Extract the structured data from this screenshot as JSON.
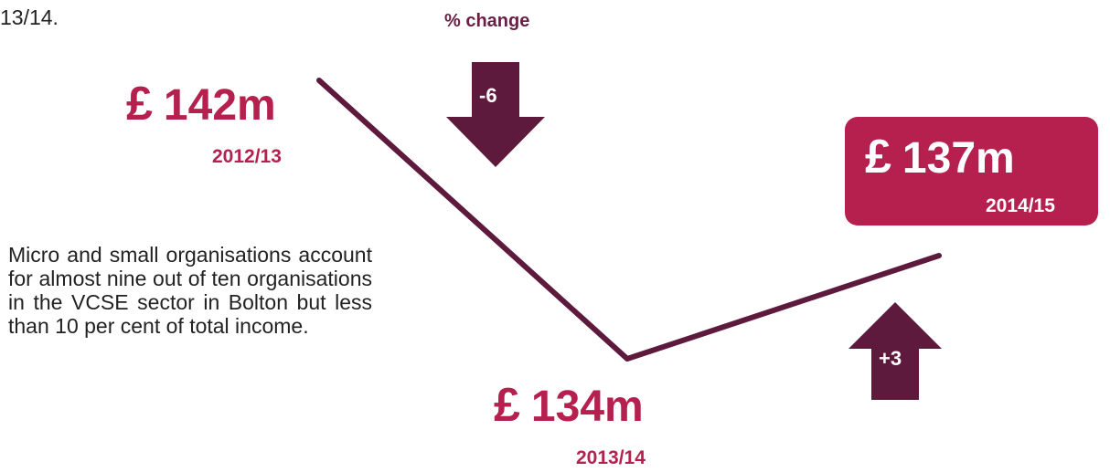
{
  "top_fragment": "13/14.",
  "change_heading": "% change",
  "currency_symbol": "£",
  "figures": [
    {
      "amount": "142m",
      "year": "2012/13"
    },
    {
      "amount": "134m",
      "year": "2013/14"
    },
    {
      "amount": "137m",
      "year": "2014/15"
    }
  ],
  "changes": [
    {
      "label": "-6",
      "direction": "down"
    },
    {
      "label": "+3",
      "direction": "up"
    }
  ],
  "description": "Micro and small organisations account for almost nine out of ten organisations in the VCSE sector in Bolton but less than 10 per cent of total income.",
  "colors": {
    "accent": "#b5204f",
    "dark": "#6b1e45",
    "arrow": "#5e1a3c"
  }
}
